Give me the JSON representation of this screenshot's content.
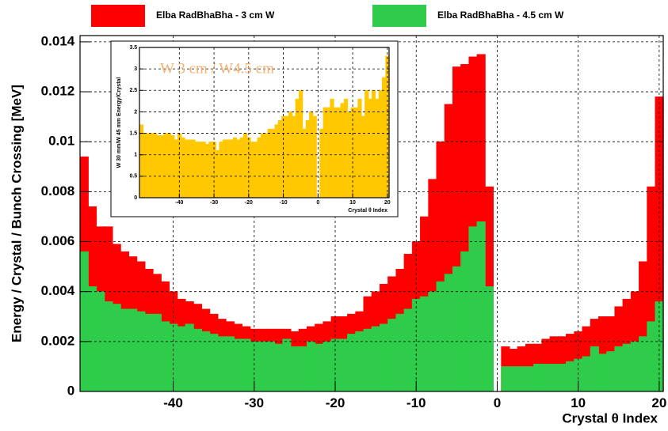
{
  "chart_data": [
    {
      "type": "histogram",
      "ylabel": "Energy / Crystal / Bunch Crossing  [MeV]",
      "xlabel": "Crystal θ Index",
      "bins": [
        -51.5,
        -50.5,
        -49.5,
        -48.5,
        -47.5,
        -46.5,
        -45.5,
        -44.5,
        -43.5,
        -42.5,
        -41.5,
        -40.5,
        -39.5,
        -38.5,
        -37.5,
        -36.5,
        -35.5,
        -34.5,
        -33.5,
        -32.5,
        -31.5,
        -30.5,
        -29.5,
        -28.5,
        -27.5,
        -26.5,
        -25.5,
        -24.5,
        -23.5,
        -22.5,
        -21.5,
        -20.5,
        -19.5,
        -18.5,
        -17.5,
        -16.5,
        -15.5,
        -14.5,
        -13.5,
        -12.5,
        -11.5,
        -10.5,
        -9.5,
        -8.5,
        -7.5,
        -6.5,
        -5.5,
        -4.5,
        -3.5,
        -2.5,
        -1.5,
        -0.5,
        0.5,
        1.5,
        2.5,
        3.5,
        4.5,
        5.5,
        6.5,
        7.5,
        8.5,
        9.5,
        10.5,
        11.5,
        12.5,
        13.5,
        14.5,
        15.5,
        16.5,
        17.5,
        18.5,
        19.5,
        20.5
      ],
      "series": [
        {
          "name": "Elba  RadBhaBha - 3 cm W",
          "color": "#ff0000",
          "values": [
            0.0094,
            0.0074,
            0.0066,
            0.0066,
            0.0059,
            0.0056,
            0.0054,
            0.0052,
            0.0049,
            0.0047,
            0.0044,
            0.004,
            0.0037,
            0.0036,
            0.0035,
            0.0033,
            0.0031,
            0.0029,
            0.0028,
            0.0027,
            0.0026,
            0.0025,
            0.0025,
            0.0025,
            0.0025,
            0.0025,
            0.0024,
            0.0025,
            0.0026,
            0.0027,
            0.0028,
            0.003,
            0.003,
            0.0031,
            0.0032,
            0.0038,
            0.004,
            0.0043,
            0.0046,
            0.0049,
            0.0055,
            0.006,
            0.007,
            0.0085,
            0.01,
            0.0115,
            0.013,
            0.0131,
            0.0134,
            0.0135,
            0.0082,
            0,
            0.0018,
            0.0017,
            0.0018,
            0.0019,
            0.0019,
            0.0021,
            0.0022,
            0.0022,
            0.0023,
            0.0024,
            0.0026,
            0.0029,
            0.003,
            0.003,
            0.0034,
            0.0037,
            0.004,
            0.0052,
            0.0082,
            0.0118
          ]
        },
        {
          "name": "Elba RadBhaBha - 4.5 cm W",
          "color": "#2ecc4a",
          "values": [
            0.0056,
            0.0042,
            0.004,
            0.0036,
            0.0035,
            0.0033,
            0.0033,
            0.0032,
            0.0031,
            0.0031,
            0.0028,
            0.0027,
            0.0026,
            0.0027,
            0.0025,
            0.0024,
            0.0023,
            0.0022,
            0.0022,
            0.0021,
            0.0021,
            0.002,
            0.002,
            0.002,
            0.0019,
            0.0021,
            0.0018,
            0.0018,
            0.002,
            0.0019,
            0.002,
            0.0021,
            0.0021,
            0.0023,
            0.0024,
            0.0025,
            0.0026,
            0.0027,
            0.0029,
            0.0031,
            0.0033,
            0.0037,
            0.0038,
            0.004,
            0.0044,
            0.0047,
            0.005,
            0.0056,
            0.0066,
            0.0068,
            0.0042,
            0,
            0.001,
            0.001,
            0.001,
            0.001,
            0.0011,
            0.0011,
            0.0011,
            0.0011,
            0.0012,
            0.0013,
            0.0014,
            0.0018,
            0.0015,
            0.0016,
            0.0018,
            0.0019,
            0.002,
            0.0022,
            0.0028,
            0.0036
          ]
        }
      ],
      "xlim": [
        -51.5,
        20.5
      ],
      "ylim": [
        0,
        0.01425
      ],
      "xticks": [
        -40,
        -30,
        -20,
        -10,
        0,
        10,
        20
      ],
      "yticks": [
        0,
        0.002,
        0.004,
        0.006,
        0.008,
        0.01,
        0.012,
        0.014
      ],
      "grid": true
    },
    {
      "type": "histogram",
      "title": "W 3 cm / W4.5 cm",
      "ylabel": "W 30 mm/W 45 mm Energy/Crystal",
      "xlabel": "Crystal θ Index",
      "bins": [
        -51.5,
        -50.5,
        -49.5,
        -48.5,
        -47.5,
        -46.5,
        -45.5,
        -44.5,
        -43.5,
        -42.5,
        -41.5,
        -40.5,
        -39.5,
        -38.5,
        -37.5,
        -36.5,
        -35.5,
        -34.5,
        -33.5,
        -32.5,
        -31.5,
        -30.5,
        -29.5,
        -28.5,
        -27.5,
        -26.5,
        -25.5,
        -24.5,
        -23.5,
        -22.5,
        -21.5,
        -20.5,
        -19.5,
        -18.5,
        -17.5,
        -16.5,
        -15.5,
        -14.5,
        -13.5,
        -12.5,
        -11.5,
        -10.5,
        -9.5,
        -8.5,
        -7.5,
        -6.5,
        -5.5,
        -4.5,
        -3.5,
        -2.5,
        -1.5,
        -0.5,
        0.5,
        1.5,
        2.5,
        3.5,
        4.5,
        5.5,
        6.5,
        7.5,
        8.5,
        9.5,
        10.5,
        11.5,
        12.5,
        13.5,
        14.5,
        15.5,
        16.5,
        17.5,
        18.5,
        19.5,
        20.5
      ],
      "color": "#ffc800",
      "values": [
        1.7,
        1.5,
        1.5,
        1.5,
        1.5,
        1.45,
        1.45,
        1.5,
        1.5,
        1.45,
        1.35,
        1.5,
        1.4,
        1.35,
        1.35,
        1.35,
        1.3,
        1.3,
        1.3,
        1.25,
        1.3,
        1.3,
        1.1,
        1.3,
        1.35,
        1.35,
        1.35,
        1.4,
        1.35,
        1.4,
        1.5,
        1.4,
        1.3,
        1.3,
        1.4,
        1.5,
        1.5,
        1.6,
        1.6,
        1.7,
        1.8,
        1.9,
        1.9,
        2.0,
        1.9,
        2.3,
        2.5,
        1.6,
        1.8,
        2.0,
        1.9,
        0,
        1.6,
        2.1,
        2.1,
        2.3,
        2.1,
        2.1,
        2.2,
        2.3,
        2.0,
        2.1,
        2.1,
        2.3,
        1.9,
        2.5,
        2.3,
        2.5,
        2.3,
        2.5,
        2.8,
        3.3
      ],
      "xlim": [
        -51.5,
        20.5
      ],
      "ylim": [
        0,
        3.5
      ],
      "xticks": [
        -40,
        -30,
        -20,
        -10,
        0,
        10,
        20
      ],
      "yticks": [
        0,
        0.5,
        1,
        1.5,
        2,
        2.5,
        3,
        3.5
      ],
      "grid": true
    }
  ]
}
